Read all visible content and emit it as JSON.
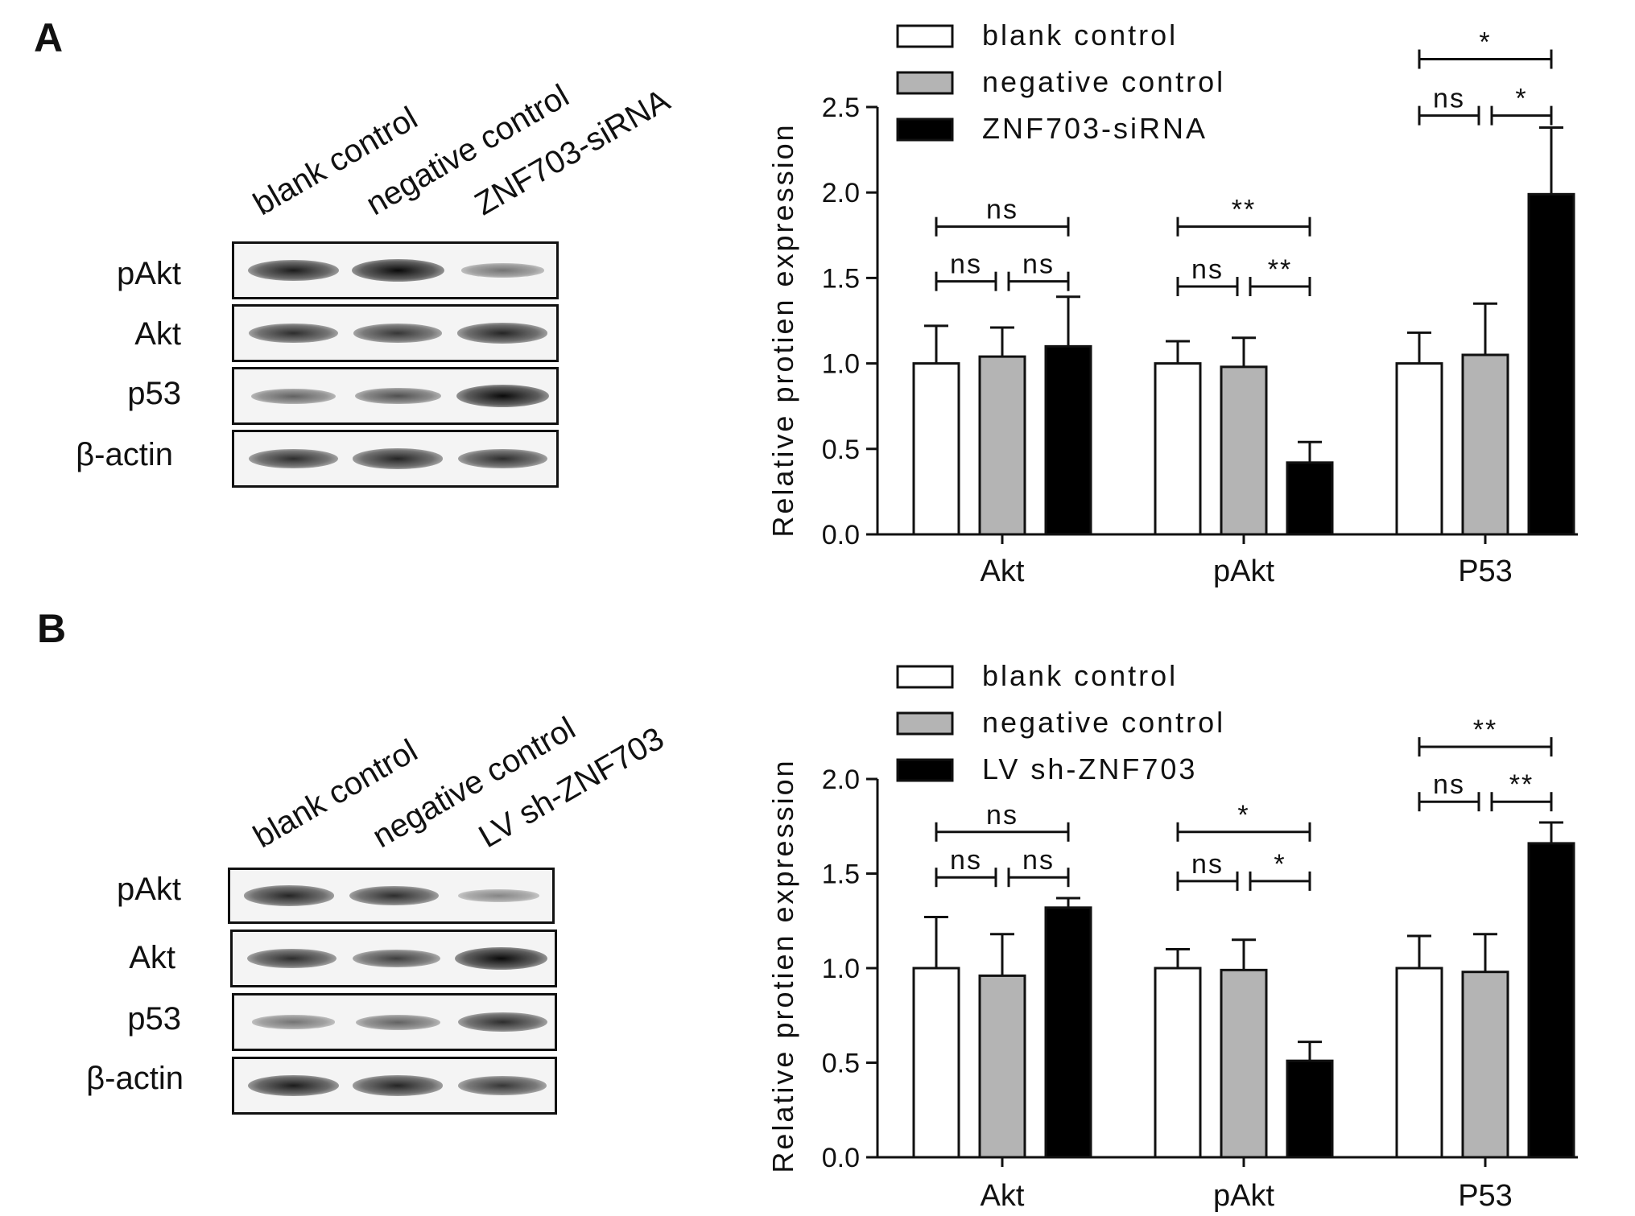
{
  "panels": [
    {
      "letter": "A",
      "lanes": [
        "blank control",
        "negative control",
        "ZNF703-siRNA"
      ],
      "rows": [
        {
          "label": "pAkt",
          "bands": [
            0.9,
            1.0,
            0.4
          ]
        },
        {
          "label": "Akt",
          "bands": [
            0.8,
            0.75,
            0.85
          ]
        },
        {
          "label": "p53",
          "bands": [
            0.5,
            0.6,
            1.0
          ]
        },
        {
          "label": "β-actin",
          "bands": [
            0.8,
            0.85,
            0.8
          ]
        }
      ]
    },
    {
      "letter": "B",
      "lanes": [
        "blank control",
        "negative control",
        "LV sh-ZNF703"
      ],
      "rows": [
        {
          "label": "pAkt",
          "bands": [
            0.85,
            0.8,
            0.3
          ]
        },
        {
          "label": "Akt",
          "bands": [
            0.8,
            0.7,
            1.0
          ]
        },
        {
          "label": "p53",
          "bands": [
            0.4,
            0.5,
            0.8
          ]
        },
        {
          "label": "β-actin",
          "bands": [
            0.9,
            0.85,
            0.75
          ]
        }
      ]
    }
  ],
  "colors": {
    "blank": "#ffffff",
    "negative": "#b4b4b4",
    "treatment": "#000000",
    "axis": "#111111"
  },
  "chart_data": [
    {
      "type": "bar",
      "ylabel": "Relative protien expression",
      "ylim": [
        0,
        2.5
      ],
      "yticks": [
        "0.0",
        "0.5",
        "1.0",
        "1.5",
        "2.0",
        "2.5"
      ],
      "categories": [
        "Akt",
        "pAkt",
        "P53"
      ],
      "series": [
        {
          "name": "blank control",
          "values": [
            1.0,
            1.0,
            1.0
          ],
          "errors": [
            0.22,
            0.13,
            0.18
          ]
        },
        {
          "name": "negative control",
          "values": [
            1.04,
            0.98,
            1.05
          ],
          "errors": [
            0.17,
            0.17,
            0.3
          ]
        },
        {
          "name": "ZNF703-siRNA",
          "values": [
            1.1,
            0.42,
            1.99
          ],
          "errors": [
            0.29,
            0.12,
            0.39
          ]
        }
      ],
      "legend": "top-left",
      "significance": [
        {
          "category": 0,
          "pair": [
            0,
            2
          ],
          "label": "ns",
          "y": 1.8
        },
        {
          "category": 0,
          "pair": [
            0,
            1
          ],
          "label": "ns",
          "y": 1.48
        },
        {
          "category": 0,
          "pair": [
            1,
            2
          ],
          "label": "ns",
          "y": 1.48
        },
        {
          "category": 1,
          "pair": [
            0,
            2
          ],
          "label": "**",
          "y": 1.8
        },
        {
          "category": 1,
          "pair": [
            0,
            1
          ],
          "label": "ns",
          "y": 1.45
        },
        {
          "category": 1,
          "pair": [
            1,
            2
          ],
          "label": "**",
          "y": 1.45
        },
        {
          "category": 2,
          "pair": [
            0,
            2
          ],
          "label": "*",
          "y": 2.78
        },
        {
          "category": 2,
          "pair": [
            0,
            1
          ],
          "label": "ns",
          "y": 2.45
        },
        {
          "category": 2,
          "pair": [
            1,
            2
          ],
          "label": "*",
          "y": 2.45
        }
      ]
    },
    {
      "type": "bar",
      "ylabel": "Relative protien expression",
      "ylim": [
        0,
        2.0
      ],
      "yticks": [
        "0.0",
        "0.5",
        "1.0",
        "1.5",
        "2.0"
      ],
      "categories": [
        "Akt",
        "pAkt",
        "P53"
      ],
      "series": [
        {
          "name": "blank control",
          "values": [
            1.0,
            1.0,
            1.0
          ],
          "errors": [
            0.27,
            0.1,
            0.17
          ]
        },
        {
          "name": "negative control",
          "values": [
            0.96,
            0.99,
            0.98
          ],
          "errors": [
            0.22,
            0.16,
            0.2
          ]
        },
        {
          "name": "LV sh-ZNF703",
          "values": [
            1.32,
            0.51,
            1.66
          ],
          "errors": [
            0.05,
            0.1,
            0.11
          ]
        }
      ],
      "legend": "top-left",
      "significance": [
        {
          "category": 0,
          "pair": [
            0,
            2
          ],
          "label": "ns",
          "y": 1.72
        },
        {
          "category": 0,
          "pair": [
            0,
            1
          ],
          "label": "ns",
          "y": 1.48
        },
        {
          "category": 0,
          "pair": [
            1,
            2
          ],
          "label": "ns",
          "y": 1.48
        },
        {
          "category": 1,
          "pair": [
            0,
            2
          ],
          "label": "*",
          "y": 1.72
        },
        {
          "category": 1,
          "pair": [
            0,
            1
          ],
          "label": "ns",
          "y": 1.46
        },
        {
          "category": 1,
          "pair": [
            1,
            2
          ],
          "label": "*",
          "y": 1.46
        },
        {
          "category": 2,
          "pair": [
            0,
            2
          ],
          "label": "**",
          "y": 2.17
        },
        {
          "category": 2,
          "pair": [
            0,
            1
          ],
          "label": "ns",
          "y": 1.88
        },
        {
          "category": 2,
          "pair": [
            1,
            2
          ],
          "label": "**",
          "y": 1.88
        }
      ]
    }
  ]
}
